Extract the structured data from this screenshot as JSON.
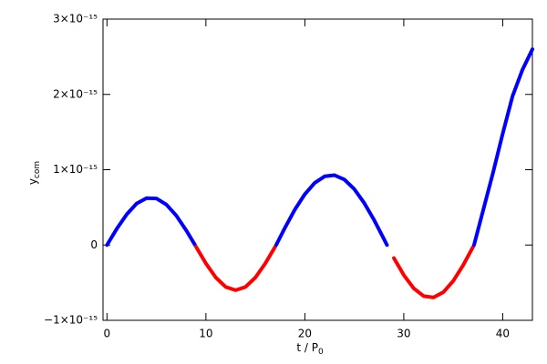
{
  "chart_data": {
    "type": "line",
    "x_label": "t / P",
    "x_label_subscript": "0",
    "y_label": "y",
    "y_label_subscript": "com",
    "x": [
      0,
      1,
      2,
      3,
      4,
      5,
      6,
      7,
      8,
      8.9,
      9,
      10,
      11,
      12,
      13,
      14,
      15,
      16,
      17,
      17.1,
      18,
      19,
      20,
      21,
      22,
      23,
      24,
      25,
      26,
      27,
      28,
      28.3,
      29,
      30,
      31,
      32,
      33,
      34,
      35,
      36,
      37,
      37.1,
      38,
      39,
      40,
      41,
      42,
      43
    ],
    "values": [
      0,
      2.17e-16,
      4.08e-16,
      5.51e-16,
      6.23e-16,
      6.18e-16,
      5.37e-16,
      3.92e-16,
      1.97e-16,
      0,
      -2.3e-17,
      -2.45e-16,
      -4.32e-16,
      -5.57e-16,
      -6e-16,
      -5.57e-16,
      -4.32e-16,
      -2.45e-16,
      -2.3e-17,
      0,
      2.32e-16,
      4.73e-16,
      6.75e-16,
      8.26e-16,
      9.12e-16,
      9.27e-16,
      8.69e-16,
      7.42e-16,
      5.58e-16,
      3.32e-16,
      7.8e-17,
      0,
      -1.73e-16,
      -3.99e-16,
      -5.75e-16,
      -6.78e-16,
      -6.96e-16,
      -6.26e-16,
      -4.77e-16,
      -2.68e-16,
      -2.5e-17,
      0,
      4.5e-16,
      9.5e-16,
      1.48e-15,
      1.98e-15,
      2.33e-15,
      2.6e-15
    ],
    "color_positive": "#0000ff",
    "color_negative": "#ff0000",
    "xlim": [
      -0.4,
      43
    ],
    "xticks": [
      0,
      10,
      20,
      30,
      40
    ],
    "ylim": [
      -1e-15,
      3e-15
    ],
    "yticks": [
      {
        "value": -1e-15,
        "label": "−1×10⁻¹⁵"
      },
      0,
      {
        "value": 1e-15,
        "label": "1×10⁻¹⁵"
      },
      {
        "value": 2e-15,
        "label": "2×10⁻¹⁵"
      },
      {
        "value": 3e-15,
        "label": "3×10⁻¹⁵"
      }
    ]
  }
}
